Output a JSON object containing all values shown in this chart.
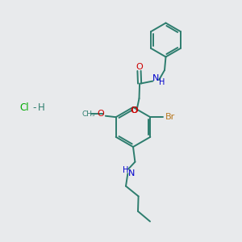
{
  "bg_color": "#e8eaec",
  "bond_color": "#2d7d6e",
  "O_color": "#cc0000",
  "N_color": "#0000cc",
  "Br_color": "#b87820",
  "Cl_color": "#00aa00",
  "line_width": 1.4,
  "fig_size": [
    3.0,
    3.0
  ],
  "dpi": 100,
  "xlim": [
    0,
    10
  ],
  "ylim": [
    0,
    10
  ]
}
